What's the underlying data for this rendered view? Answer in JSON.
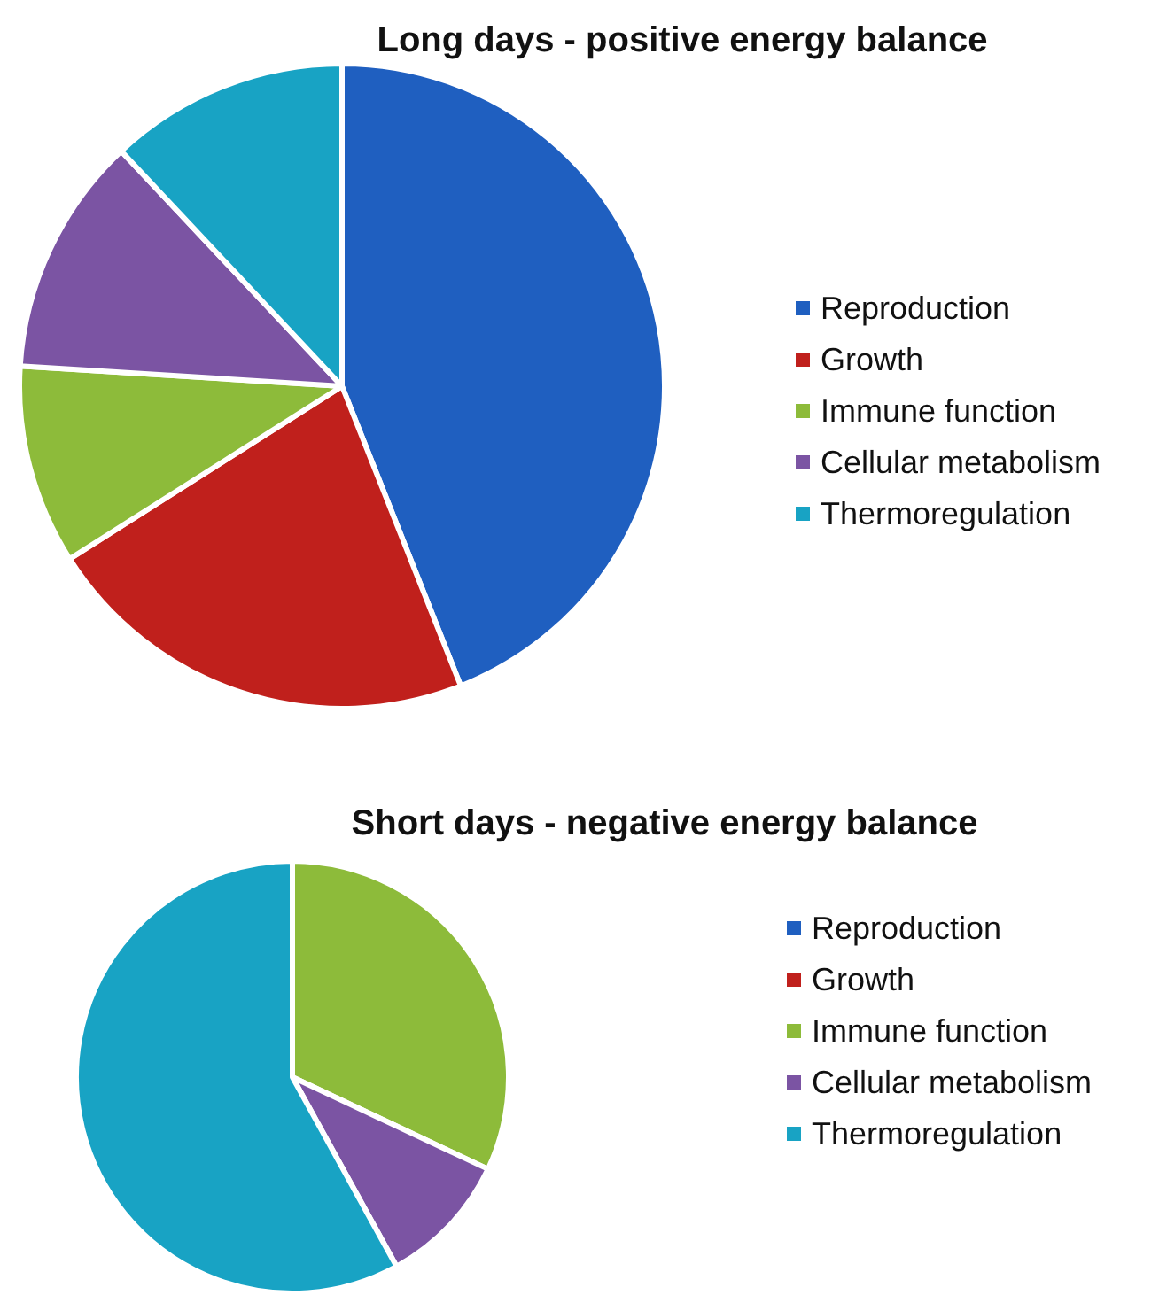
{
  "chart_data": [
    {
      "type": "pie",
      "title": "Long days - positive energy balance",
      "categories": [
        "Reproduction",
        "Growth",
        "Immune function",
        "Cellular metabolism",
        "Thermoregulation"
      ],
      "values": [
        44,
        22,
        10,
        12,
        12
      ],
      "colors": [
        "#1f5fc0",
        "#c0201c",
        "#8dbb3a",
        "#7b54a3",
        "#18a3c4"
      ],
      "legend": "right"
    },
    {
      "type": "pie",
      "title": "Short days - negative energy balance",
      "categories": [
        "Reproduction",
        "Growth",
        "Immune function",
        "Cellular metabolism",
        "Thermoregulation"
      ],
      "values": [
        0,
        0,
        32,
        10,
        58
      ],
      "colors": [
        "#1f5fc0",
        "#c0201c",
        "#8dbb3a",
        "#7b54a3",
        "#18a3c4"
      ],
      "legend": "right"
    }
  ]
}
